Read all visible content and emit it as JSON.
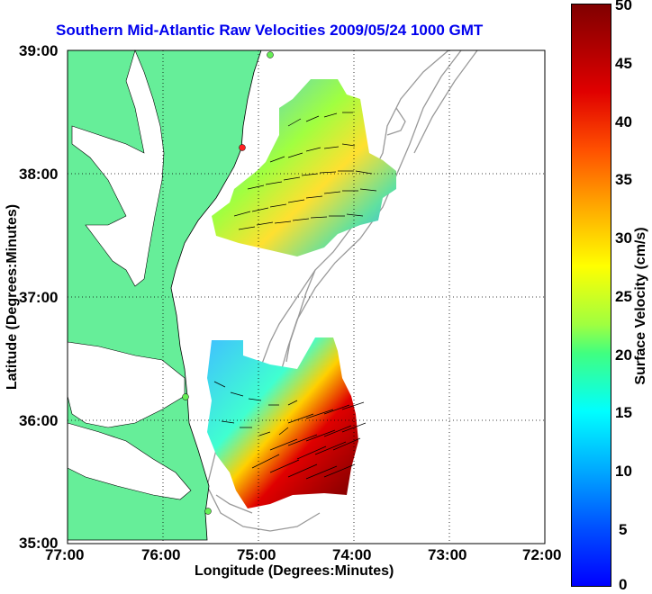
{
  "title": "Southern Mid-Atlantic Raw Velocities 2009/05/24 1000 GMT",
  "xaxis": {
    "label": "Longitude (Degrees:Minutes)",
    "ticks": [
      "77:00",
      "76:00",
      "75:00",
      "74:00",
      "73:00",
      "72:00"
    ]
  },
  "yaxis": {
    "label": "Latitude (Degrees:Minutes)",
    "ticks": [
      "39:00",
      "38:00",
      "37:00",
      "36:00",
      "35:00"
    ]
  },
  "colorbar": {
    "label": "Surface Velocity (cm/s)",
    "ticks": [
      "50",
      "45",
      "40",
      "35",
      "30",
      "25",
      "20",
      "15",
      "10",
      "5",
      "0"
    ],
    "min": 0,
    "max": 50
  },
  "colors": {
    "land": "#66ee99",
    "title": "#0000ee",
    "bathymetry": "#999999"
  },
  "map": {
    "lon_range": [
      -77,
      -72
    ],
    "lat_range": [
      35,
      39
    ]
  }
}
